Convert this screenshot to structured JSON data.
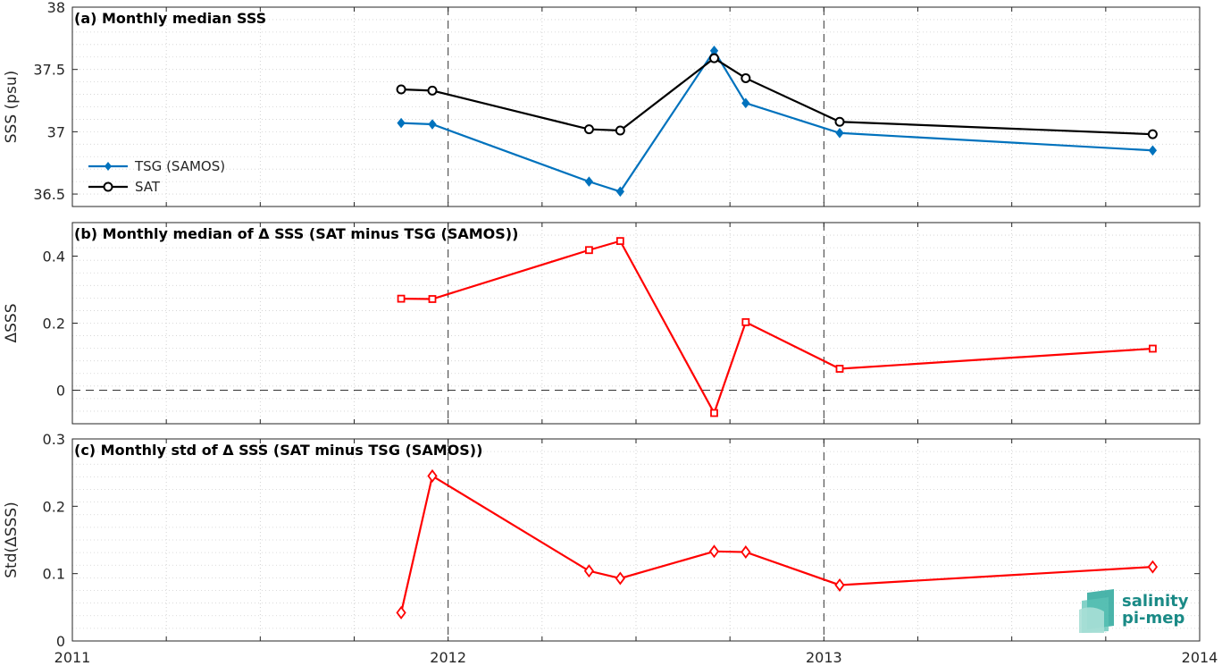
{
  "chart_data": [
    {
      "type": "line",
      "title": "(a) Monthly median SSS",
      "ylabel": "SSS (psu)",
      "xlim": [
        2011,
        2014
      ],
      "ylim": [
        36.4,
        38
      ],
      "yticks": [
        36.5,
        37,
        37.5,
        38
      ],
      "yticklabels": [
        "36.5",
        "37",
        "37.5",
        "38"
      ],
      "x": [
        2011.875,
        2011.958,
        2012.375,
        2012.458,
        2012.708,
        2012.792,
        2013.042,
        2013.875
      ],
      "series": [
        {
          "name": "TSG (SAMOS)",
          "color": "#0072BD",
          "marker": "diamond-filled",
          "values": [
            37.07,
            37.06,
            36.6,
            36.52,
            37.65,
            37.23,
            36.99,
            36.85
          ]
        },
        {
          "name": "SAT",
          "color": "#000000",
          "marker": "circle",
          "values": [
            37.34,
            37.33,
            37.02,
            37.01,
            37.59,
            37.43,
            37.08,
            36.98
          ]
        }
      ],
      "legend": "lower-left",
      "grid": true
    },
    {
      "type": "line",
      "title": "(b) Monthly median of Δ SSS (SAT minus TSG (SAMOS))",
      "ylabel": "ΔSSS",
      "xlim": [
        2011,
        2014
      ],
      "ylim": [
        -0.1,
        0.5
      ],
      "yticks": [
        0,
        0.2,
        0.4
      ],
      "yticklabels": [
        "0",
        "0.2",
        "0.4"
      ],
      "x": [
        2011.875,
        2011.958,
        2012.375,
        2012.458,
        2012.708,
        2012.792,
        2013.042,
        2013.875
      ],
      "series": [
        {
          "color": "#FF0000",
          "marker": "square",
          "values": [
            0.273,
            0.272,
            0.418,
            0.445,
            -0.068,
            0.203,
            0.064,
            0.124
          ]
        }
      ],
      "zero_line": true,
      "grid": true
    },
    {
      "type": "line",
      "title": "(c) Monthly std of Δ SSS (SAT minus TSG (SAMOS))",
      "ylabel": "Std(ΔSSS)",
      "xlim": [
        2011,
        2014
      ],
      "ylim": [
        0,
        0.3
      ],
      "yticks": [
        0,
        0.1,
        0.2,
        0.3
      ],
      "yticklabels": [
        "0",
        "0.1",
        "0.2",
        "0.3"
      ],
      "xticks": [
        2011,
        2012,
        2013,
        2014
      ],
      "xticklabels": [
        "2011",
        "2012",
        "2013",
        "2014"
      ],
      "x": [
        2011.875,
        2011.958,
        2012.375,
        2012.458,
        2012.708,
        2012.792,
        2013.042,
        2013.875
      ],
      "series": [
        {
          "color": "#FF0000",
          "marker": "diamond",
          "values": [
            0.042,
            0.245,
            0.104,
            0.093,
            0.133,
            0.132,
            0.083,
            0.11
          ]
        }
      ],
      "grid": true
    }
  ],
  "logo": {
    "line1": "salinity",
    "line2": "pi-mep"
  }
}
